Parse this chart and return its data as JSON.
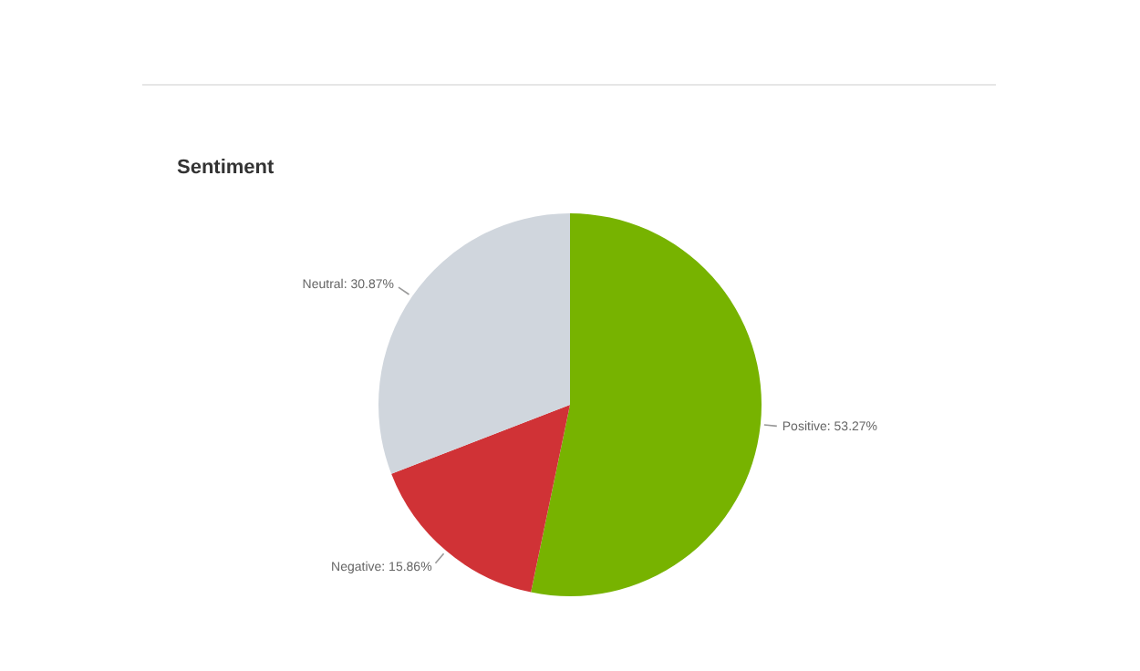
{
  "chart_data": {
    "type": "pie",
    "title": "Sentiment",
    "categories": [
      "Positive",
      "Negative",
      "Neutral"
    ],
    "values": [
      53.27,
      15.86,
      30.87
    ],
    "colors": [
      "#77b300",
      "#d03236",
      "#d0d6dd"
    ],
    "value_labels": [
      "53.27%",
      "15.86%",
      "30.87%"
    ],
    "legend": false
  }
}
